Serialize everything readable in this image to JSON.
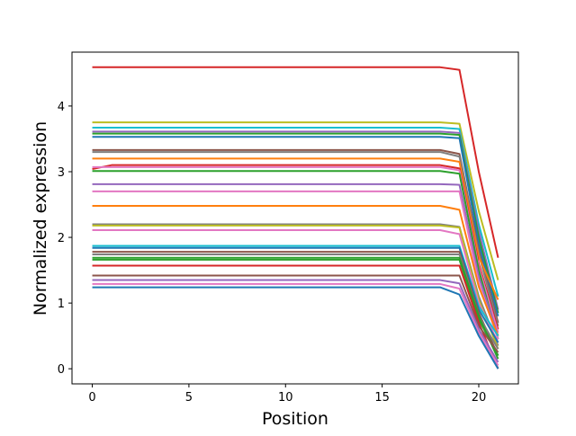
{
  "chart_data": {
    "type": "line",
    "title": "",
    "xlabel": "Position",
    "ylabel": "Normalized expression",
    "xlim": [
      -1.05,
      22.05
    ],
    "ylim": [
      -0.23,
      4.82
    ],
    "xticks": [
      0,
      5,
      10,
      15,
      20
    ],
    "yticks": [
      0,
      1,
      2,
      3,
      4
    ],
    "grid": false,
    "legend": "none",
    "series": [
      {
        "color": "#d62728",
        "x": [
          0,
          18,
          19,
          20,
          21
        ],
        "y": [
          4.59,
          4.59,
          4.55,
          3.0,
          1.69
        ]
      },
      {
        "color": "#bcbd22",
        "x": [
          0,
          18,
          19,
          20,
          21
        ],
        "y": [
          3.75,
          3.75,
          3.73,
          2.4,
          1.35
        ]
      },
      {
        "color": "#17becf",
        "x": [
          0,
          18,
          19,
          20,
          21
        ],
        "y": [
          3.67,
          3.67,
          3.65,
          2.2,
          1.1
        ]
      },
      {
        "color": "#9467bd",
        "x": [
          0,
          18,
          19,
          20,
          21
        ],
        "y": [
          3.61,
          3.61,
          3.59,
          2.1,
          0.9
        ]
      },
      {
        "color": "#2ca02c",
        "x": [
          0,
          18,
          19,
          20,
          21
        ],
        "y": [
          3.58,
          3.58,
          3.56,
          2.0,
          0.85
        ]
      },
      {
        "color": "#1f77b4",
        "x": [
          0,
          18,
          19,
          20,
          21
        ],
        "y": [
          3.53,
          3.53,
          3.51,
          1.9,
          0.8
        ]
      },
      {
        "color": "#8c564b",
        "x": [
          0,
          18,
          19,
          20,
          21
        ],
        "y": [
          3.33,
          3.33,
          3.27,
          1.8,
          0.7
        ]
      },
      {
        "color": "#7f7f7f",
        "x": [
          0,
          18,
          19,
          20,
          21
        ],
        "y": [
          3.3,
          3.3,
          3.23,
          1.75,
          0.65
        ]
      },
      {
        "color": "#ff7f0e",
        "x": [
          0,
          18,
          19,
          20,
          21
        ],
        "y": [
          3.2,
          3.2,
          3.15,
          1.7,
          1.05
        ]
      },
      {
        "color": "#d62728",
        "x": [
          0,
          1,
          18,
          19,
          20,
          21
        ],
        "y": [
          3.04,
          3.1,
          3.1,
          3.05,
          1.6,
          0.6
        ]
      },
      {
        "color": "#e377c2",
        "x": [
          0,
          18,
          19,
          20,
          21
        ],
        "y": [
          3.07,
          3.07,
          3.02,
          1.55,
          0.55
        ]
      },
      {
        "color": "#2ca02c",
        "x": [
          0,
          18,
          19,
          20,
          21
        ],
        "y": [
          3.01,
          3.01,
          2.97,
          1.5,
          0.45
        ]
      },
      {
        "color": "#9467bd",
        "x": [
          0,
          18,
          19,
          20,
          21
        ],
        "y": [
          2.81,
          2.81,
          2.8,
          1.4,
          0.5
        ]
      },
      {
        "color": "#e377c2",
        "x": [
          0,
          18,
          19,
          20,
          21
        ],
        "y": [
          2.7,
          2.7,
          2.7,
          1.3,
          0.45
        ]
      },
      {
        "color": "#ff7f0e",
        "x": [
          0,
          18,
          19,
          20,
          21
        ],
        "y": [
          2.48,
          2.48,
          2.42,
          1.25,
          0.5
        ]
      },
      {
        "color": "#7f7f7f",
        "x": [
          0,
          18,
          19,
          20,
          21
        ],
        "y": [
          2.2,
          2.2,
          2.16,
          1.1,
          0.35
        ]
      },
      {
        "color": "#bcbd22",
        "x": [
          0,
          18,
          19,
          20,
          21
        ],
        "y": [
          2.18,
          2.18,
          2.15,
          1.05,
          0.3
        ]
      },
      {
        "color": "#e377c2",
        "x": [
          0,
          18,
          19,
          20,
          21
        ],
        "y": [
          2.11,
          2.11,
          2.05,
          1.0,
          0.4
        ]
      },
      {
        "color": "#17becf",
        "x": [
          0,
          18,
          19,
          20,
          21
        ],
        "y": [
          1.87,
          1.87,
          1.87,
          0.95,
          0.5
        ]
      },
      {
        "color": "#1f77b4",
        "x": [
          0,
          18,
          19,
          20,
          21
        ],
        "y": [
          1.84,
          1.84,
          1.84,
          0.9,
          0.4
        ]
      },
      {
        "color": "#8c564b",
        "x": [
          0,
          18,
          19,
          20,
          21
        ],
        "y": [
          1.78,
          1.78,
          1.78,
          0.85,
          0.2
        ]
      },
      {
        "color": "#7f7f7f",
        "x": [
          0,
          18,
          19,
          20,
          21
        ],
        "y": [
          1.74,
          1.74,
          1.74,
          0.8,
          0.3
        ]
      },
      {
        "color": "#2ca02c",
        "x": [
          0,
          18,
          19,
          20,
          21
        ],
        "y": [
          1.69,
          1.69,
          1.69,
          0.8,
          0.15
        ]
      },
      {
        "color": "#2ca02c",
        "x": [
          0,
          18,
          19,
          20,
          21
        ],
        "y": [
          1.66,
          1.66,
          1.66,
          0.75,
          0.2
        ]
      },
      {
        "color": "#d62728",
        "x": [
          0,
          18,
          19,
          20,
          21
        ],
        "y": [
          1.57,
          1.57,
          1.57,
          0.7,
          0.0
        ]
      },
      {
        "color": "#8c564b",
        "x": [
          0,
          18,
          19,
          20,
          21
        ],
        "y": [
          1.42,
          1.42,
          1.42,
          0.65,
          0.25
        ]
      },
      {
        "color": "#9467bd",
        "x": [
          0,
          18,
          19,
          20,
          21
        ],
        "y": [
          1.35,
          1.35,
          1.3,
          0.6,
          0.1
        ]
      },
      {
        "color": "#e377c2",
        "x": [
          0,
          18,
          19,
          20,
          21
        ],
        "y": [
          1.29,
          1.29,
          1.22,
          0.55,
          0.05
        ]
      },
      {
        "color": "#1f77b4",
        "x": [
          0,
          18,
          19,
          20,
          21
        ],
        "y": [
          1.24,
          1.24,
          1.13,
          0.5,
          0.0
        ]
      }
    ]
  }
}
